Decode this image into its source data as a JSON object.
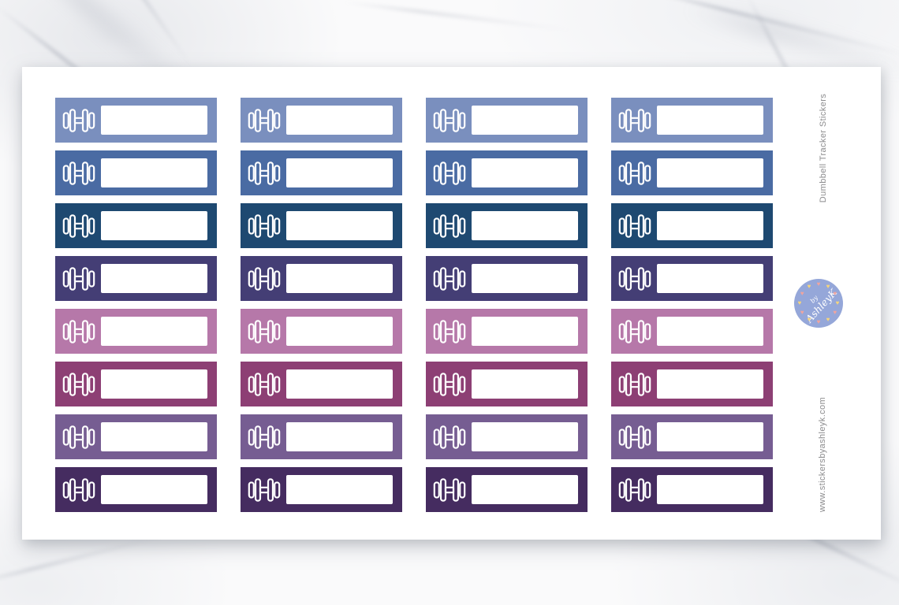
{
  "sheet": {
    "side_text_top": "Dumbbell  Tracker  Stickers",
    "side_text_bottom": "www.stickersbyashleyk.com",
    "badge": {
      "line1": "by",
      "line2": "AshleyK",
      "bg_color": "#95a7d9",
      "heart_colors": [
        "#f0a49e",
        "#f5d57c"
      ]
    }
  },
  "stickers": {
    "columns": 4,
    "icon": "dumbbell-icon",
    "label_box": "",
    "icon_color": "#ffffff",
    "rows": [
      {
        "name": "light-periwinkle",
        "color": "#7a8fbe"
      },
      {
        "name": "medium-blue",
        "color": "#4a6ba3"
      },
      {
        "name": "navy-blue",
        "color": "#1e4971"
      },
      {
        "name": "dark-indigo",
        "color": "#443e75"
      },
      {
        "name": "mauve-pink",
        "color": "#b678a9"
      },
      {
        "name": "plum",
        "color": "#8d3f74"
      },
      {
        "name": "medium-purple",
        "color": "#765d92"
      },
      {
        "name": "dark-purple",
        "color": "#452c60"
      }
    ]
  }
}
